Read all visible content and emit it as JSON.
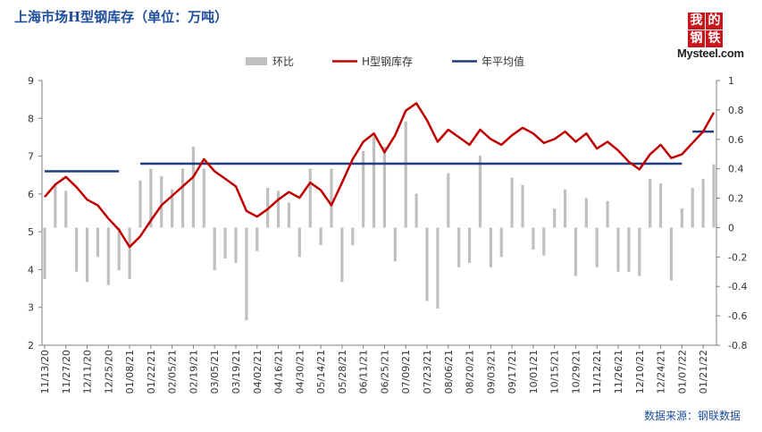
{
  "title": "上海市场H型钢库存（单位：万吨）",
  "source": "数据来源：钢联数据",
  "logo": {
    "chars": [
      "我",
      "的",
      "钢",
      "铁"
    ],
    "text": "Mysteel.com"
  },
  "colors": {
    "ratio_bar": "#bfbfbf",
    "inventory_line": "#c00000",
    "annual_avg_line": "#1f3d7a",
    "title": "#1f4e9a"
  },
  "chart_data": {
    "type": "bar+line",
    "legend": {
      "position": "top",
      "entries": [
        "环比",
        "H型钢库存",
        "年平均值"
      ]
    },
    "x_ticks": [
      "11/13/20",
      "11/27/20",
      "12/11/20",
      "12/25/20",
      "01/08/21",
      "01/22/21",
      "02/05/21",
      "02/19/21",
      "03/05/21",
      "03/19/21",
      "04/02/21",
      "04/16/21",
      "04/30/21",
      "05/14/21",
      "05/28/21",
      "06/11/21",
      "06/25/21",
      "07/09/21",
      "07/23/21",
      "08/06/21",
      "08/20/21",
      "09/03/21",
      "09/17/21",
      "10/01/21",
      "10/15/21",
      "10/29/21",
      "11/12/21",
      "11/26/21",
      "12/10/21",
      "12/24/21",
      "01/07/22",
      "01/21/22"
    ],
    "left_axis": {
      "min": 2,
      "max": 9,
      "ticks": [
        2,
        3,
        4,
        5,
        6,
        7,
        8,
        9
      ]
    },
    "right_axis": {
      "min": -0.8,
      "max": 1,
      "ticks": [
        "-0.8",
        "-0.6",
        "-0.4",
        "-0.2",
        "0",
        "0.2",
        "0.4",
        "0.6",
        "0.8",
        "1"
      ]
    },
    "series": [
      {
        "name": "环比",
        "type": "bar",
        "axis": "right",
        "values": [
          -0.35,
          0.3,
          0.25,
          -0.3,
          -0.37,
          -0.2,
          -0.39,
          -0.29,
          -0.35,
          0.32,
          0.4,
          0.35,
          0.26,
          0.4,
          0.55,
          0.4,
          -0.29,
          -0.21,
          -0.24,
          -0.63,
          -0.16,
          0.27,
          0.25,
          0.17,
          -0.2,
          0.4,
          -0.12,
          0.4,
          -0.37,
          -0.12,
          0.52,
          0.62,
          0.55,
          -0.23,
          0.72,
          0.23,
          -0.5,
          -0.55,
          0.37,
          -0.27,
          -0.24,
          0.49,
          -0.27,
          -0.2,
          0.34,
          0.29,
          -0.15,
          -0.19,
          0.13,
          0.26,
          -0.33,
          0.2,
          -0.27,
          0.18,
          -0.3,
          -0.3,
          -0.33,
          0.33,
          0.3,
          -0.36,
          0.13,
          0.27,
          0.33,
          0.43
        ]
      },
      {
        "name": "H型钢库存",
        "type": "line",
        "axis": "left",
        "values": [
          5.92,
          6.25,
          6.45,
          6.18,
          5.85,
          5.7,
          5.35,
          5.05,
          4.6,
          4.88,
          5.3,
          5.7,
          5.95,
          6.2,
          6.45,
          6.92,
          6.6,
          6.4,
          6.2,
          5.55,
          5.4,
          5.6,
          5.85,
          6.05,
          5.9,
          6.3,
          6.1,
          5.7,
          6.3,
          6.92,
          7.38,
          7.6,
          7.1,
          7.55,
          8.2,
          8.4,
          7.95,
          7.38,
          7.7,
          7.5,
          7.3,
          7.7,
          7.45,
          7.3,
          7.55,
          7.75,
          7.6,
          7.35,
          7.45,
          7.65,
          7.38,
          7.6,
          7.2,
          7.38,
          7.15,
          6.85,
          6.65,
          7.05,
          7.3,
          6.95,
          7.05,
          7.35,
          7.65,
          8.15
        ]
      },
      {
        "name": "年平均值",
        "type": "line",
        "axis": "left",
        "segments": [
          {
            "from_index": 0,
            "to_index": 7,
            "value": 6.6
          },
          {
            "from_index": 9,
            "to_index": 60,
            "value": 6.8
          },
          {
            "from_index": 61,
            "to_index": 63,
            "value": 7.65
          }
        ]
      }
    ]
  }
}
